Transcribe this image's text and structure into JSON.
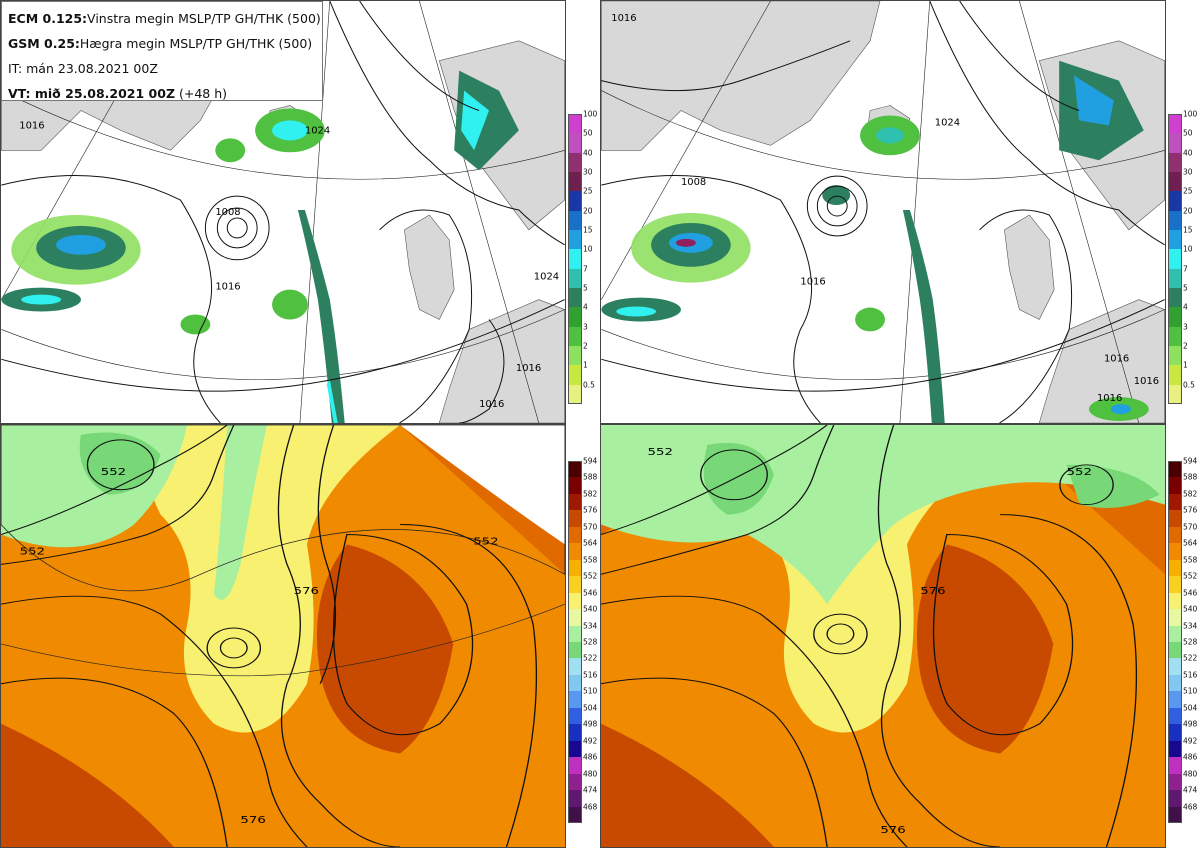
{
  "header": {
    "line1_bold": "ECM 0.125:",
    "line1_rest": "Vinstra megin MSLP/TP GH/THK (500)",
    "line2_bold": "GSM 0.25:",
    "line2_rest": "Hægra megin MSLP/TP GH/THK (500)",
    "line3": "IT: mán 23.08.2021 00Z",
    "line4_bold": "VT: mið 25.08.2021 00Z",
    "line4_rest": " (+48 h)"
  },
  "precip_scale": {
    "labels": [
      "100",
      "50",
      "40",
      "30",
      "25",
      "20",
      "15",
      "10",
      "7",
      "5",
      "4",
      "3",
      "2",
      "1",
      "0.5"
    ],
    "colors": [
      "#d040d0",
      "#c050c0",
      "#903070",
      "#702050",
      "#1838a8",
      "#1870c8",
      "#20a0e0",
      "#30f0f0",
      "#30c0b0",
      "#2c8060",
      "#30a030",
      "#50c040",
      "#90e060",
      "#c8e840",
      "#e8f080"
    ]
  },
  "thickness_scale": {
    "labels": [
      "594",
      "588",
      "582",
      "576",
      "570",
      "564",
      "558",
      "552",
      "546",
      "540",
      "534",
      "528",
      "522",
      "516",
      "510",
      "504",
      "498",
      "492",
      "486",
      "480",
      "474",
      "468"
    ],
    "colors": [
      "#4a0000",
      "#7a0000",
      "#a01800",
      "#c84a00",
      "#e06a00",
      "#f08a00",
      "#f8b000",
      "#f8d020",
      "#f8f070",
      "#e8f8a0",
      "#a8f0a0",
      "#78d878",
      "#a0e0f0",
      "#80c8f0",
      "#5898f0",
      "#3060e0",
      "#1830c0",
      "#180890",
      "#c030c0",
      "#902090",
      "#601870",
      "#401048"
    ]
  },
  "maps": {
    "top_left": {
      "pressure_labels": [
        "1016",
        "1008",
        "1016",
        "1024",
        "1016",
        "1016",
        "1024"
      ]
    },
    "top_right": {
      "pressure_labels": [
        "1016",
        "1008",
        "1016",
        "1024",
        "1016",
        "1016",
        "1016"
      ]
    },
    "bottom_left": {
      "height_labels": [
        "552",
        "552",
        "576",
        "576",
        "552"
      ]
    },
    "bottom_right": {
      "height_labels": [
        "552",
        "552",
        "576",
        "576"
      ]
    }
  }
}
